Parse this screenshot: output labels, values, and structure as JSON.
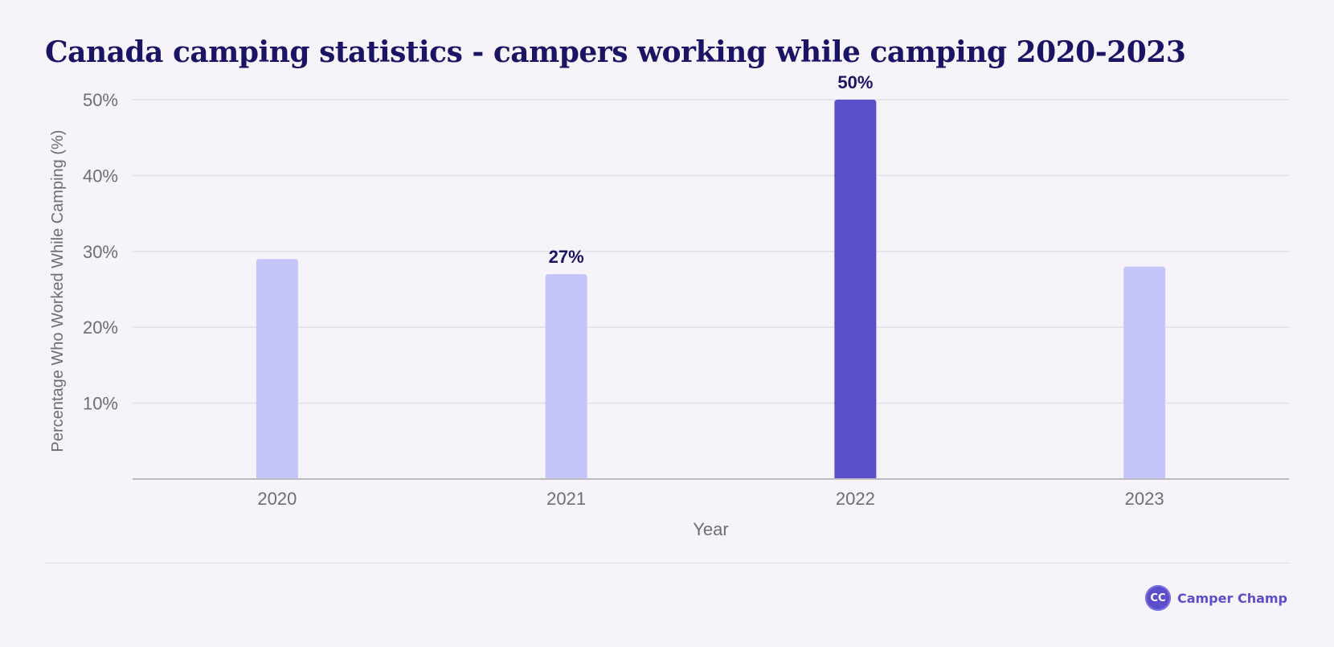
{
  "chart_data": {
    "type": "bar",
    "title": "Canada camping statistics - campers working while camping 2020-2023",
    "xlabel": "Year",
    "ylabel": "Percentage Who Worked While Camping (%)",
    "categories": [
      "2020",
      "2021",
      "2022",
      "2023"
    ],
    "values": [
      29,
      27,
      50,
      28
    ],
    "data_labels": [
      "",
      "27%",
      "50%",
      ""
    ],
    "highlight": [
      false,
      false,
      true,
      false
    ],
    "yticks": [
      {
        "value": 10,
        "label": "10%"
      },
      {
        "value": 20,
        "label": "20%"
      },
      {
        "value": 30,
        "label": "30%"
      },
      {
        "value": 40,
        "label": "40%"
      },
      {
        "value": 50,
        "label": "50%"
      }
    ],
    "ylim": [
      0,
      50
    ],
    "grid": true,
    "colors": {
      "bar": "#c3c5fb",
      "bar_highlight": "#5b4ecb",
      "grid": "#e3dfe7",
      "axis": "#bdb9c2",
      "tick_text": "#6e6c77",
      "data_label": "#1a1464"
    }
  },
  "brand": {
    "logo_text": "CC",
    "name": "Camper Champ"
  }
}
